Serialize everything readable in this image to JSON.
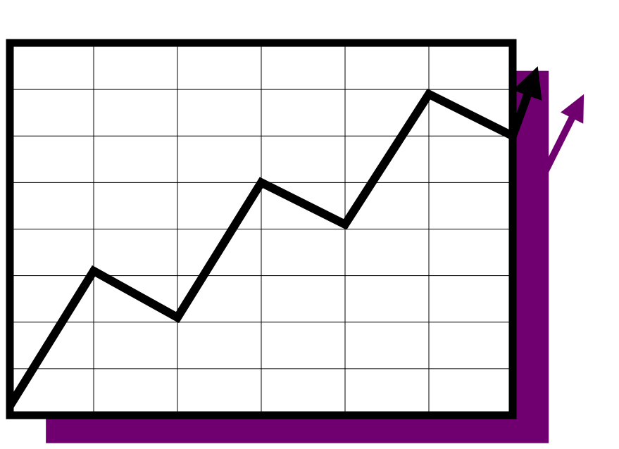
{
  "chart_data": {
    "type": "line",
    "title": "",
    "xlabel": "",
    "ylabel": "",
    "grid": true,
    "x": [
      0,
      1,
      2,
      3,
      4,
      5,
      6
    ],
    "xlim": [
      0,
      6
    ],
    "ylim": [
      0,
      8
    ],
    "series": [
      {
        "values": [
          0.2,
          3.1,
          2.1,
          5.0,
          4.1,
          6.9,
          6.0
        ],
        "color": "#000000",
        "arrow_end": [
          6.3,
          7.5
        ]
      }
    ],
    "shadow": {
      "color": "#700070",
      "offset_x": 0.43,
      "offset_y": -0.6,
      "arrow_start": [
        6.35,
        5.1
      ],
      "arrow_end": [
        6.85,
        6.9
      ]
    }
  }
}
